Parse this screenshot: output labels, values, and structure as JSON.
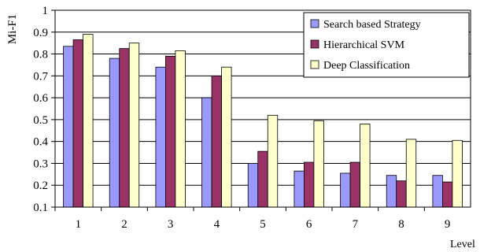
{
  "chart_data": {
    "type": "bar",
    "title": "",
    "xlabel": "Level",
    "ylabel": "Mi-F1",
    "categories": [
      "1",
      "2",
      "3",
      "4",
      "5",
      "6",
      "7",
      "8",
      "9"
    ],
    "ylim": [
      0.1,
      1
    ],
    "yticks": [
      "0.1",
      "0.2",
      "0.3",
      "0.4",
      "0.5",
      "0.6",
      "0.7",
      "0.8",
      "0.9",
      "1"
    ],
    "grid": true,
    "legend_position": "top-right",
    "series": [
      {
        "name": "Search based Strategy",
        "color": "#9999ff",
        "values": [
          0.835,
          0.78,
          0.74,
          0.6,
          0.3,
          0.265,
          0.255,
          0.245,
          0.245
        ]
      },
      {
        "name": "Hierarchical SVM",
        "color": "#993366",
        "values": [
          0.865,
          0.825,
          0.79,
          0.7,
          0.355,
          0.305,
          0.305,
          0.22,
          0.215
        ]
      },
      {
        "name": "Deep Classification",
        "color": "#ffffcc",
        "values": [
          0.89,
          0.85,
          0.815,
          0.74,
          0.52,
          0.495,
          0.48,
          0.41,
          0.405
        ]
      }
    ]
  }
}
